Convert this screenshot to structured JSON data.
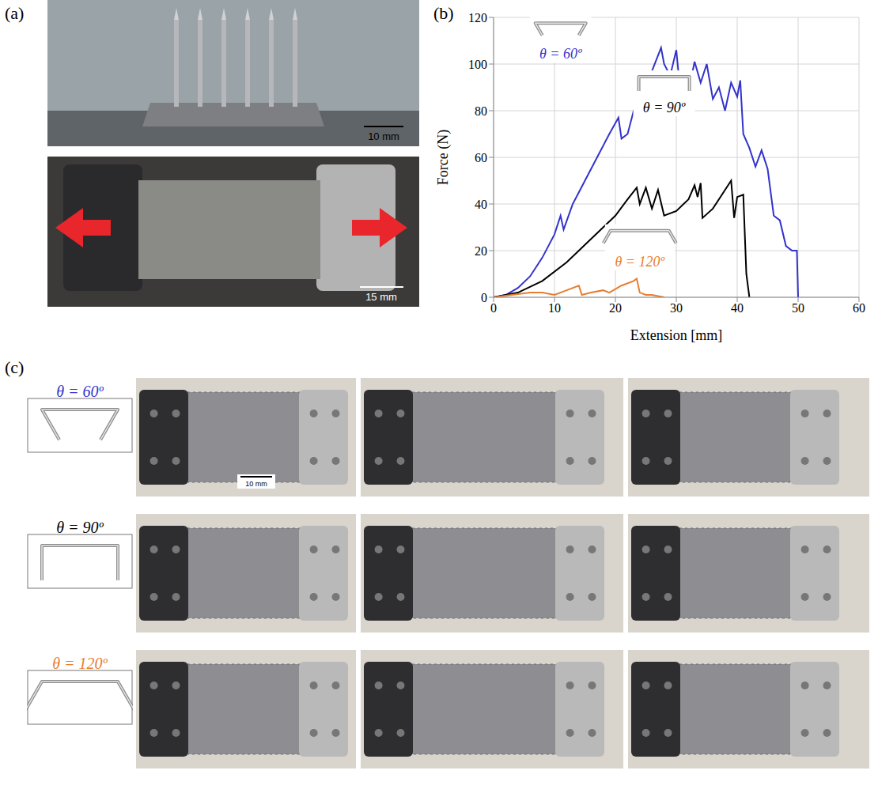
{
  "chart_data": {
    "type": "line",
    "x_label": "Extension [mm]",
    "y_label": "Force (N)",
    "xlim": [
      0,
      60
    ],
    "xticks": [
      0,
      10,
      20,
      30,
      40,
      50,
      60
    ],
    "ylim": [
      0,
      120
    ],
    "yticks": [
      0,
      20,
      40,
      60,
      80,
      100,
      120
    ],
    "grid": true,
    "series": [
      {
        "name": "θ = 60º",
        "color": "#3333cc",
        "x": [
          0,
          2,
          4,
          6,
          8,
          10,
          11,
          11.5,
          13,
          15,
          17,
          19,
          20.5,
          21,
          22,
          23,
          25,
          26,
          27.5,
          28,
          29,
          30,
          31,
          32,
          33,
          34,
          35,
          36,
          37,
          38,
          39,
          40,
          40.5,
          41,
          42,
          43,
          44,
          45,
          46,
          47,
          48,
          49,
          49.8,
          50
        ],
        "values": [
          0,
          1,
          4,
          9,
          17,
          27,
          35,
          29,
          40,
          50,
          60,
          70,
          77,
          68,
          70,
          80,
          90,
          97,
          107,
          100,
          95,
          106,
          79,
          88,
          101,
          92,
          100,
          85,
          90,
          80,
          92,
          86,
          93,
          70,
          64,
          56,
          63,
          55,
          35,
          33,
          22,
          20,
          20,
          0
        ]
      },
      {
        "name": "θ = 90º",
        "color": "#000000",
        "x": [
          0,
          4,
          8,
          12,
          16,
          18,
          20,
          22,
          23.5,
          24,
          25,
          26,
          27,
          28,
          30,
          32,
          33,
          33.5,
          34,
          34.3,
          36,
          38,
          39,
          39.5,
          40,
          41,
          41.5,
          42
        ],
        "values": [
          0,
          2,
          7,
          15,
          25,
          30,
          35,
          42,
          47,
          40,
          47,
          38,
          46,
          35,
          37,
          42,
          48,
          43,
          49,
          34,
          38,
          46,
          50,
          34,
          43,
          44,
          10,
          0
        ]
      },
      {
        "name": "θ = 120º",
        "color": "#e87d2f",
        "x": [
          0,
          3,
          6,
          8,
          10,
          12,
          14,
          14.5,
          16,
          18,
          19,
          21,
          23,
          23.5,
          24,
          25,
          26,
          28
        ],
        "values": [
          0,
          1,
          2,
          2,
          1,
          3,
          5,
          1,
          2,
          3,
          2,
          5,
          7,
          8,
          2,
          1,
          1,
          0
        ]
      }
    ]
  },
  "figure": {
    "panel_a": {
      "label": "(a)",
      "scale_bars": [
        "10 mm",
        "15 mm"
      ]
    },
    "panel_b": {
      "label": "(b)"
    },
    "panel_c": {
      "label": "(c)",
      "rows": [
        "θ = 60º",
        "θ = 90º",
        "θ = 120º"
      ],
      "scale_bar": "10 mm"
    }
  }
}
